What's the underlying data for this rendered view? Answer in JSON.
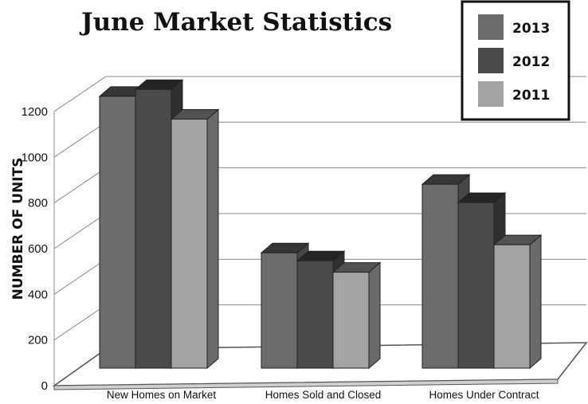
{
  "chart_data": {
    "type": "bar",
    "title": "June Market Statistics",
    "ylabel": "NUMBER OF UNITS",
    "xlabel": "",
    "ylim": [
      0,
      1200
    ],
    "yticks": [
      "0",
      "200",
      "400",
      "600",
      "800",
      "1000",
      "1200"
    ],
    "categories": [
      "New Homes on Market",
      "Homes Sold and Closed",
      "Homes Under Contract"
    ],
    "series": [
      {
        "name": "2013",
        "values": [
          1190,
          505,
          805
        ],
        "color": "#6b6b6b"
      },
      {
        "name": "2012",
        "values": [
          1220,
          470,
          725
        ],
        "color": "#4a4a4a"
      },
      {
        "name": "2011",
        "values": [
          1090,
          420,
          540
        ],
        "color": "#a3a3a3"
      }
    ],
    "legend_position": "top-right",
    "grid": true
  }
}
